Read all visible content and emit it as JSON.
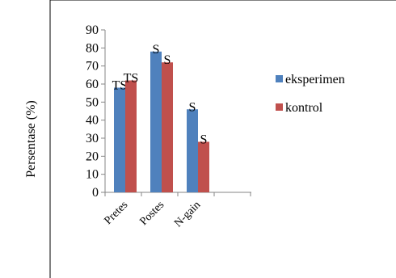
{
  "chart_data": {
    "type": "bar",
    "title": "",
    "xlabel": "",
    "ylabel": "Persentase (%)",
    "ylim": [
      0,
      90
    ],
    "yticks": [
      0,
      10,
      20,
      30,
      40,
      50,
      60,
      70,
      80,
      90
    ],
    "categories": [
      "Pretes",
      "Postes",
      "N-gain"
    ],
    "series": [
      {
        "name": "eksperimen",
        "color": "#4F81BD",
        "values": [
          58,
          78,
          46
        ],
        "data_labels": [
          "TS",
          "S",
          "S"
        ]
      },
      {
        "name": "kontrol",
        "color": "#C0504D",
        "values": [
          62,
          72,
          28
        ],
        "data_labels": [
          "TS",
          "S",
          "S"
        ]
      }
    ],
    "grid": false,
    "legend_position": "right"
  }
}
